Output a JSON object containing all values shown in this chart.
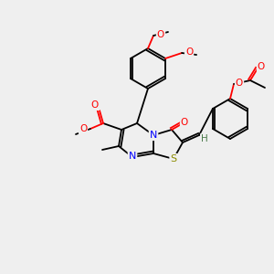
{
  "bg_color": "#efefef",
  "bond_color": "#000000",
  "atom_colors": {
    "O": "#ff0000",
    "N": "#0000ff",
    "S": "#8b8b00",
    "H": "#4a7a4a",
    "C": "#000000"
  },
  "font_size": 7.5,
  "line_width": 1.3
}
